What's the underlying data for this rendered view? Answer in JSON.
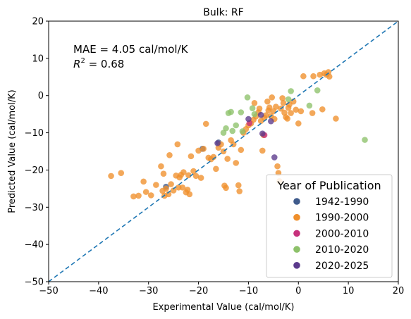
{
  "chart_data": {
    "type": "scatter",
    "title": "Bulk: RF",
    "xlabel": "Experimental Value (cal/mol/K)",
    "ylabel": "Predicted Value (cal/mol/K)",
    "xlim": [
      -50,
      20
    ],
    "ylim": [
      -50,
      20
    ],
    "xticks": [
      -50,
      -40,
      -30,
      -20,
      -10,
      0,
      10,
      20
    ],
    "yticks": [
      -50,
      -40,
      -30,
      -20,
      -10,
      0,
      10,
      20
    ],
    "annotations": {
      "mae": "MAE = 4.05 cal/mol/K",
      "r2_symbol": "R",
      "r2_exp": "2",
      "r2_value": " = 0.68"
    },
    "reference_line": {
      "x": [
        -50,
        20
      ],
      "y": [
        -50,
        20
      ],
      "style": "dashed",
      "color": "#1f77b4"
    },
    "legend": {
      "title": "Year of Publication",
      "placement": "lower-right"
    },
    "series": [
      {
        "name": "1942-1990",
        "color": "#3f5b8c",
        "points": [
          [
            -26.5,
            -24.5
          ],
          [
            -19.2,
            -14.3
          ],
          [
            -16.0,
            -12.6
          ]
        ]
      },
      {
        "name": "1990-2000",
        "color": "#ef8f2c",
        "points": [
          [
            -37.5,
            -21.6
          ],
          [
            -35.5,
            -20.8
          ],
          [
            -33.0,
            -27.1
          ],
          [
            -32.0,
            -26.9
          ],
          [
            -31.0,
            -23.1
          ],
          [
            -30.5,
            -25.9
          ],
          [
            -29.5,
            -26.8
          ],
          [
            -28.5,
            -24.0
          ],
          [
            -27.5,
            -19.0
          ],
          [
            -27.0,
            -21.0
          ],
          [
            -27.2,
            -25.6
          ],
          [
            -26.8,
            -26.9
          ],
          [
            -26.5,
            -25.0
          ],
          [
            -26.0,
            -26.5
          ],
          [
            -25.8,
            -16.0
          ],
          [
            -25.5,
            -23.8
          ],
          [
            -25.0,
            -25.5
          ],
          [
            -24.5,
            -21.5
          ],
          [
            -24.0,
            -24.7
          ],
          [
            -24.2,
            -13.1
          ],
          [
            -23.8,
            -22.0
          ],
          [
            -23.5,
            -21.3
          ],
          [
            -23.2,
            -24.7
          ],
          [
            -23.0,
            -20.6
          ],
          [
            -22.5,
            -26.0
          ],
          [
            -22.2,
            -25.3
          ],
          [
            -22.0,
            -21.4
          ],
          [
            -21.8,
            -26.5
          ],
          [
            -21.5,
            -16.3
          ],
          [
            -21.0,
            -20.3
          ],
          [
            -20.5,
            -21.6
          ],
          [
            -20.0,
            -14.8
          ],
          [
            -19.5,
            -22.1
          ],
          [
            -19.0,
            -14.3
          ],
          [
            -18.5,
            -7.6
          ],
          [
            -18.0,
            -16.7
          ],
          [
            -17.5,
            -17.1
          ],
          [
            -17.0,
            -16.5
          ],
          [
            -16.5,
            -19.7
          ],
          [
            -16.0,
            -14.0
          ],
          [
            -15.5,
            -13.1
          ],
          [
            -15.0,
            -15.0
          ],
          [
            -14.8,
            -24.2
          ],
          [
            -14.5,
            -24.8
          ],
          [
            -14.2,
            -17.0
          ],
          [
            -13.5,
            -12.0
          ],
          [
            -13.0,
            -13.1
          ],
          [
            -12.5,
            -18.1
          ],
          [
            -12.0,
            -24.1
          ],
          [
            -11.8,
            -25.7
          ],
          [
            -11.5,
            -14.6
          ],
          [
            -11.0,
            -10.0
          ],
          [
            -10.5,
            -9.0
          ],
          [
            -10.0,
            -8.0
          ],
          [
            -9.5,
            -7.5
          ],
          [
            -9.0,
            -6.5
          ],
          [
            -8.8,
            -2.0
          ],
          [
            -8.5,
            -5.6
          ],
          [
            -8.0,
            -4.5
          ],
          [
            -7.8,
            -3.5
          ],
          [
            -7.5,
            -6.8
          ],
          [
            -7.2,
            -14.8
          ],
          [
            -7.0,
            -10.6
          ],
          [
            -6.8,
            -6.0
          ],
          [
            -6.5,
            -5.3
          ],
          [
            -6.2,
            -1.6
          ],
          [
            -6.0,
            -4.0
          ],
          [
            -5.8,
            -3.2
          ],
          [
            -5.5,
            -5.5
          ],
          [
            -5.3,
            -0.5
          ],
          [
            -5.0,
            -4.2
          ],
          [
            -4.8,
            -6.3
          ],
          [
            -4.5,
            -3.0
          ],
          [
            -4.2,
            -19.0
          ],
          [
            -4.0,
            -20.8
          ],
          [
            -3.8,
            -23.0
          ],
          [
            -3.5,
            -3.5
          ],
          [
            -3.2,
            -0.7
          ],
          [
            -3.0,
            -2.0
          ],
          [
            -2.8,
            -4.6
          ],
          [
            -2.5,
            -5.8
          ],
          [
            -2.2,
            -6.2
          ],
          [
            -2.0,
            -3.3
          ],
          [
            -1.8,
            -2.4
          ],
          [
            -1.5,
            -4.7
          ],
          [
            -1.0,
            -1.6
          ],
          [
            -0.5,
            -3.8
          ],
          [
            0.0,
            -7.5
          ],
          [
            0.5,
            -4.2
          ],
          [
            1.0,
            5.2
          ],
          [
            2.8,
            -4.7
          ],
          [
            3.0,
            5.2
          ],
          [
            4.3,
            5.6
          ],
          [
            4.8,
            -3.7
          ],
          [
            5.2,
            6.0
          ],
          [
            5.6,
            5.6
          ],
          [
            6.0,
            6.3
          ],
          [
            6.2,
            5.1
          ],
          [
            7.5,
            -6.2
          ]
        ]
      },
      {
        "name": "2000-2010",
        "color": "#c7317c",
        "points": [
          [
            -9.8,
            -7.4
          ],
          [
            -6.8,
            -10.6
          ]
        ]
      },
      {
        "name": "2010-2020",
        "color": "#8dc16a",
        "points": [
          [
            -15.0,
            -10.0
          ],
          [
            -14.5,
            -8.8
          ],
          [
            -14.0,
            -4.7
          ],
          [
            -13.5,
            -4.4
          ],
          [
            -13.2,
            -9.5
          ],
          [
            -12.5,
            -8.0
          ],
          [
            -11.2,
            -9.6
          ],
          [
            -11.5,
            -4.5
          ],
          [
            -10.2,
            -0.5
          ],
          [
            -9.2,
            -3.4
          ],
          [
            -8.8,
            -5.0
          ],
          [
            -2.0,
            -1.0
          ],
          [
            -1.5,
            1.2
          ],
          [
            2.2,
            -2.7
          ],
          [
            3.8,
            1.4
          ],
          [
            13.3,
            -11.9
          ]
        ]
      },
      {
        "name": "2020-2025",
        "color": "#5b3a8c",
        "points": [
          [
            -16.2,
            -12.8
          ],
          [
            -10.0,
            -6.3
          ],
          [
            -7.5,
            -5.2
          ],
          [
            -7.2,
            -10.2
          ],
          [
            -5.5,
            -6.9
          ],
          [
            -4.8,
            -16.6
          ]
        ]
      }
    ]
  }
}
